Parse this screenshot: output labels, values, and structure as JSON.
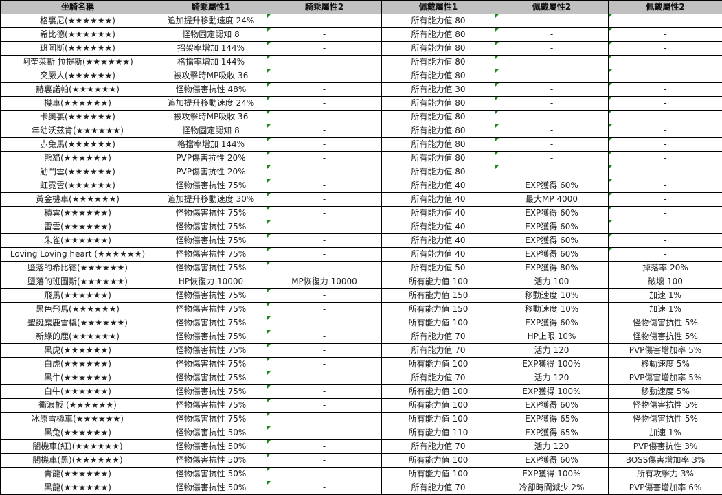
{
  "table": {
    "headers": [
      "坐騎名稱",
      "騎乘屬性1",
      "騎乘屬性2",
      "佩戴屬性1",
      "佩戴屬性2",
      "佩戴屬性2"
    ],
    "header_bg": "#c0c0c0",
    "note_marker_color": "#1a8a1a",
    "rows": [
      [
        "格裏尼(★★★★★★)",
        "追加提升移動速度 24%",
        "-",
        "所有能力值 80",
        "-",
        "-"
      ],
      [
        "希比德(★★★★★★)",
        "怪物固定認知 8",
        "-",
        "所有能力值 80",
        "-",
        "-"
      ],
      [
        "班圖斯(★★★★★★)",
        "招架率增加 144%",
        "-",
        "所有能力值 80",
        "-",
        "-"
      ],
      [
        "阿奎萊斯 拉提斯(★★★★★★)",
        "格擋率增加 144%",
        "-",
        "所有能力值 80",
        "-",
        "-"
      ],
      [
        "突厥人(★★★★★★)",
        "被攻擊時MP吸收 36",
        "-",
        "所有能力值 80",
        "-",
        "-"
      ],
      [
        "赫裏諾帕(★★★★★★)",
        "怪物傷害抗性 48%",
        "-",
        "所有能力值 30",
        "-",
        "-"
      ],
      [
        "機車(★★★★★★)",
        "追加提升移動速度 24%",
        "-",
        "所有能力值 80",
        "-",
        "-"
      ],
      [
        "卡奧裏(★★★★★★)",
        "被攻擊時MP吸收 36",
        "-",
        "所有能力值 80",
        "-",
        "-"
      ],
      [
        "年幼沃茲肯(★★★★★★)",
        "怪物固定認知 8",
        "-",
        "所有能力值 80",
        "-",
        "-"
      ],
      [
        "赤兔馬(★★★★★★)",
        "格擋率增加 144%",
        "-",
        "所有能力值 80",
        "-",
        "-"
      ],
      [
        "熊貓(★★★★★★)",
        "PVP傷害抗性 20%",
        "-",
        "所有能力值 80",
        "-",
        "-"
      ],
      [
        "觔鬥雲(★★★★★★)",
        "PVP傷害抗性 20%",
        "-",
        "所有能力值 80",
        "-",
        "-"
      ],
      [
        "虹霓雲(★★★★★★)",
        "怪物傷害抗性 75%",
        "-",
        "所有能力值 40",
        "EXP獲得 60%",
        "-"
      ],
      [
        "黃金機車(★★★★★★)",
        "追加提升移動速度 30%",
        "-",
        "所有能力值 40",
        "最大MP 4000",
        "-"
      ],
      [
        "積雲(★★★★★★)",
        "怪物傷害抗性 75%",
        "-",
        "所有能力值 40",
        "EXP獲得 60%",
        "-"
      ],
      [
        "雷雲(★★★★★★)",
        "怪物傷害抗性 75%",
        "-",
        "所有能力值 40",
        "EXP獲得 60%",
        "-"
      ],
      [
        "朱雀(★★★★★★)",
        "怪物傷害抗性 75%",
        "-",
        "所有能力值 40",
        "EXP獲得 60%",
        "-"
      ],
      [
        "Loving Loving heart (★★★★★★)",
        "怪物傷害抗性 75%",
        "-",
        "所有能力值 40",
        "EXP獲得 60%",
        "-"
      ],
      [
        "墮落的希比德(★★★★★★)",
        "怪物傷害抗性 75%",
        "-",
        "所有能力值 50",
        "EXP獲得 80%",
        "掉落率 20%"
      ],
      [
        "墮落的班圖斯(★★★★★★)",
        "HP恢復力 10000",
        "MP恢復力 10000",
        "所有能力值 100",
        "活力 100",
        "破壞 100"
      ],
      [
        "飛馬(★★★★★★)",
        "怪物傷害抗性 75%",
        "-",
        "所有能力值 150",
        "移動速度 10%",
        "加速 1%"
      ],
      [
        "黑色飛馬(★★★★★★)",
        "怪物傷害抗性 75%",
        "-",
        "所有能力值 150",
        "移動速度 10%",
        "加速 1%"
      ],
      [
        "聖誕麋鹿雪橇(★★★★★★)",
        "怪物傷害抗性 75%",
        "-",
        "所有能力值 100",
        "EXP獲得 60%",
        "怪物傷害抗性 5%"
      ],
      [
        "新綠的鹿(★★★★★★)",
        "怪物傷害抗性 75%",
        "-",
        "所有能力值 70",
        "HP上限 10%",
        "怪物傷害抗性 5%"
      ],
      [
        "黑虎(★★★★★★)",
        "怪物傷害抗性 75%",
        "-",
        "所有能力值 70",
        "活力 120",
        "PVP傷害增加率 5%"
      ],
      [
        "白虎(★★★★★★)",
        "怪物傷害抗性 75%",
        "-",
        "所有能力值 100",
        "EXP獲得 100%",
        "移動速度 5%"
      ],
      [
        "黑牛(★★★★★★)",
        "怪物傷害抗性 75%",
        "-",
        "所有能力值 70",
        "活力 120",
        "PVP傷害增加率 5%"
      ],
      [
        "白牛(★★★★★★)",
        "怪物傷害抗性 75%",
        "-",
        "所有能力值 100",
        "EXP獲得 100%",
        "移動速度 5%"
      ],
      [
        "衝浪板 (★★★★★★)",
        "怪物傷害抗性 75%",
        "-",
        "所有能力值 100",
        "EXP獲得 60%",
        "怪物傷害抗性 5%"
      ],
      [
        "冰原雪橇車(★★★★★★)",
        "怪物傷害抗性 75%",
        "-",
        "所有能力值 100",
        "EXP獲得 65%",
        "怪物傷害抗性 5%"
      ],
      [
        "黑兔(★★★★★★)",
        "怪物傷害抗性 50%",
        "-",
        "所有能力值 110",
        "EXP獲得 65%",
        "加速 1%"
      ],
      [
        "闇機車(紅)(★★★★★★)",
        "怪物傷害抗性 50%",
        "-",
        "所有能力值 70",
        "活力 120",
        "PVP傷害抗性 3%"
      ],
      [
        "闇機車(黑)(★★★★★★)",
        "怪物傷害抗性 50%",
        "-",
        "所有能力值 100",
        "EXP獲得 60%",
        "BOSS傷害增加率 3%"
      ],
      [
        "青龍(★★★★★★)",
        "怪物傷害抗性 50%",
        "-",
        "所有能力值 100",
        "EXP獲得 100%",
        "所有攻擊力 3%"
      ],
      [
        "黑龍(★★★★★★)",
        "怪物傷害抗性 50%",
        "-",
        "所有能力值 70",
        "冷卻時間減少 2%",
        "PVP傷害增加率 6%"
      ]
    ]
  }
}
